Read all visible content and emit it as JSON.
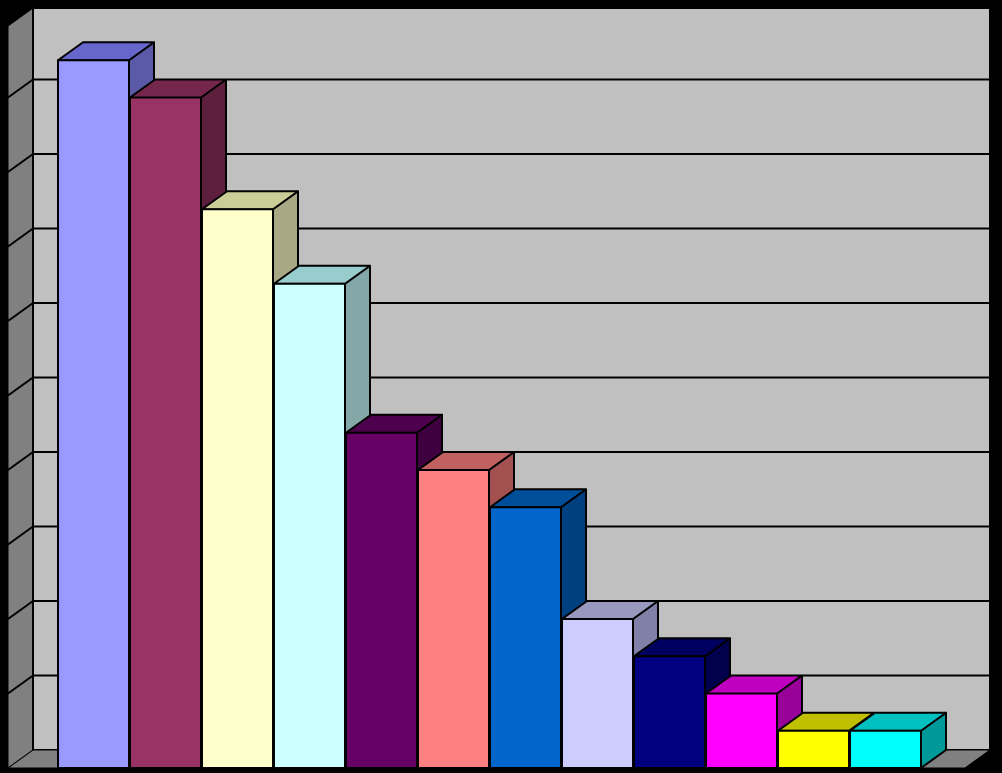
{
  "chart_data": {
    "type": "bar",
    "three_d": true,
    "title": "",
    "xlabel": "",
    "ylabel": "",
    "ylim": [
      0,
      10
    ],
    "grid": true,
    "legend": "none",
    "categories": [
      "",
      "",
      "",
      "",
      "",
      "",
      "",
      "",
      "",
      "",
      "",
      ""
    ],
    "values": [
      9.5,
      9.0,
      7.5,
      6.5,
      4.5,
      4.0,
      3.5,
      2.0,
      1.5,
      1.0,
      0.5,
      0.5
    ],
    "bar_colors": [
      {
        "front": "#9999ff",
        "top": "#6666cc",
        "side": "#5a5aa8"
      },
      {
        "front": "#993366",
        "top": "#74264d",
        "side": "#5e1f3f"
      },
      {
        "front": "#ffffcc",
        "top": "#cccc99",
        "side": "#a8a884"
      },
      {
        "front": "#ccffff",
        "top": "#99cccc",
        "side": "#84a8a8"
      },
      {
        "front": "#660066",
        "top": "#4d004d",
        "side": "#3f003f"
      },
      {
        "front": "#ff8080",
        "top": "#c06060",
        "side": "#a35050"
      },
      {
        "front": "#0066cc",
        "top": "#004d99",
        "side": "#003f80"
      },
      {
        "front": "#ccccff",
        "top": "#9999c0",
        "side": "#8080a8"
      },
      {
        "front": "#000080",
        "top": "#000060",
        "side": "#00004d"
      },
      {
        "front": "#ff00ff",
        "top": "#c000c0",
        "side": "#990099"
      },
      {
        "front": "#ffff00",
        "top": "#c0c000",
        "side": "#999900"
      },
      {
        "front": "#00ffff",
        "top": "#00c0c0",
        "side": "#009999"
      }
    ],
    "plot_background": "#c0c0c0",
    "wall_color": "#808080",
    "floor_color": "#808080",
    "grid_color": "#000000"
  }
}
